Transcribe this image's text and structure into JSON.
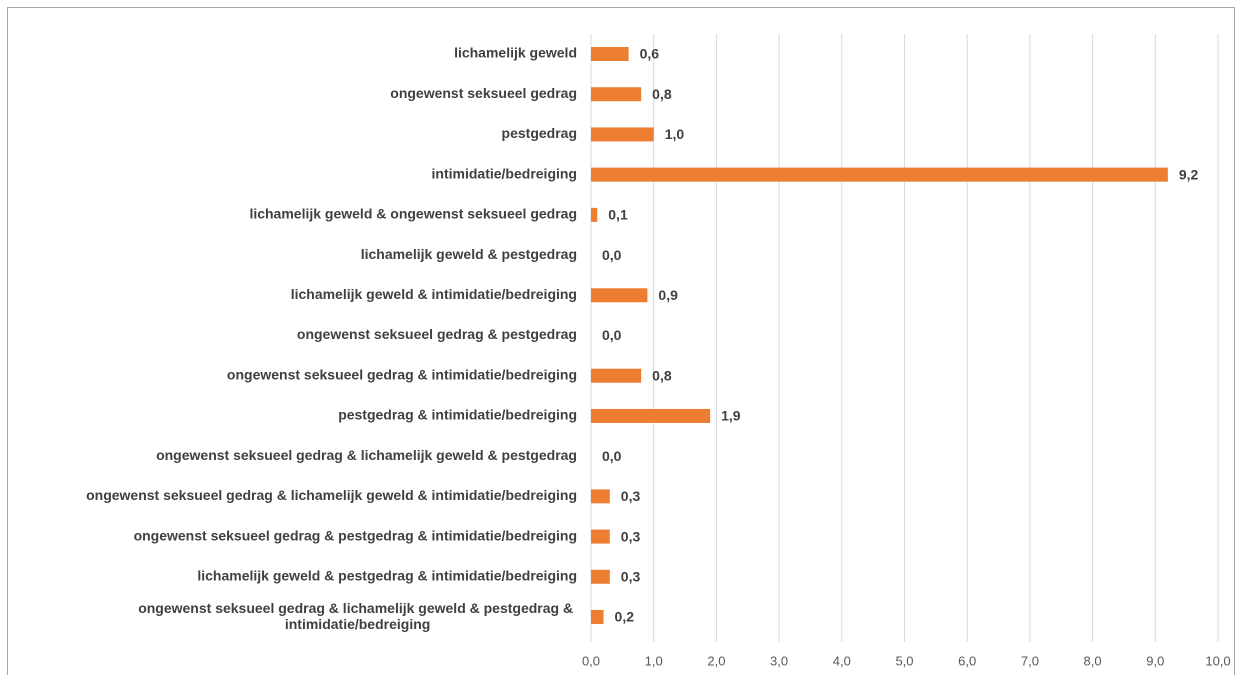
{
  "chart_data": {
    "type": "bar",
    "orientation": "horizontal",
    "categories": [
      "lichamelijk geweld",
      "ongewenst seksueel gedrag",
      "pestgedrag",
      "intimidatie/bedreiging",
      "lichamelijk geweld & ongewenst seksueel gedrag",
      "lichamelijk geweld & pestgedrag",
      "lichamelijk geweld & intimidatie/bedreiging",
      "ongewenst seksueel gedrag & pestgedrag",
      "ongewenst seksueel gedrag & intimidatie/bedreiging",
      "pestgedrag & intimidatie/bedreiging",
      "ongewenst seksueel gedrag & lichamelijk geweld & pestgedrag",
      "ongewenst seksueel gedrag & lichamelijk geweld & intimidatie/bedreiging",
      "ongewenst seksueel gedrag & pestgedrag & intimidatie/bedreiging",
      "lichamelijk geweld & pestgedrag & intimidatie/bedreiging",
      "ongewenst seksueel gedrag & lichamelijk geweld & pestgedrag & intimidatie/bedreiging"
    ],
    "values": [
      0.6,
      0.8,
      1.0,
      9.2,
      0.1,
      0.0,
      0.9,
      0.0,
      0.8,
      1.9,
      0.0,
      0.3,
      0.3,
      0.3,
      0.2
    ],
    "value_labels": [
      "0,6",
      "0,8",
      "1,0",
      "9,2",
      "0,1",
      "0,0",
      "0,9",
      "0,0",
      "0,8",
      "1,9",
      "0,0",
      "0,3",
      "0,3",
      "0,3",
      "0,2"
    ],
    "color": "#ed7d31",
    "xlim": [
      0,
      10
    ],
    "xticks": [
      {
        "value": 0,
        "label": "0,0"
      },
      {
        "value": 1,
        "label": "1,0"
      },
      {
        "value": 2,
        "label": "2,0"
      },
      {
        "value": 3,
        "label": "3,0"
      },
      {
        "value": 4,
        "label": "4,0"
      },
      {
        "value": 5,
        "label": "5,0"
      },
      {
        "value": 6,
        "label": "6,0"
      },
      {
        "value": 7,
        "label": "7,0"
      },
      {
        "value": 8,
        "label": "8,0"
      },
      {
        "value": 9,
        "label": "9,0"
      },
      {
        "value": 10,
        "label": "10,0"
      }
    ],
    "grid": true
  }
}
